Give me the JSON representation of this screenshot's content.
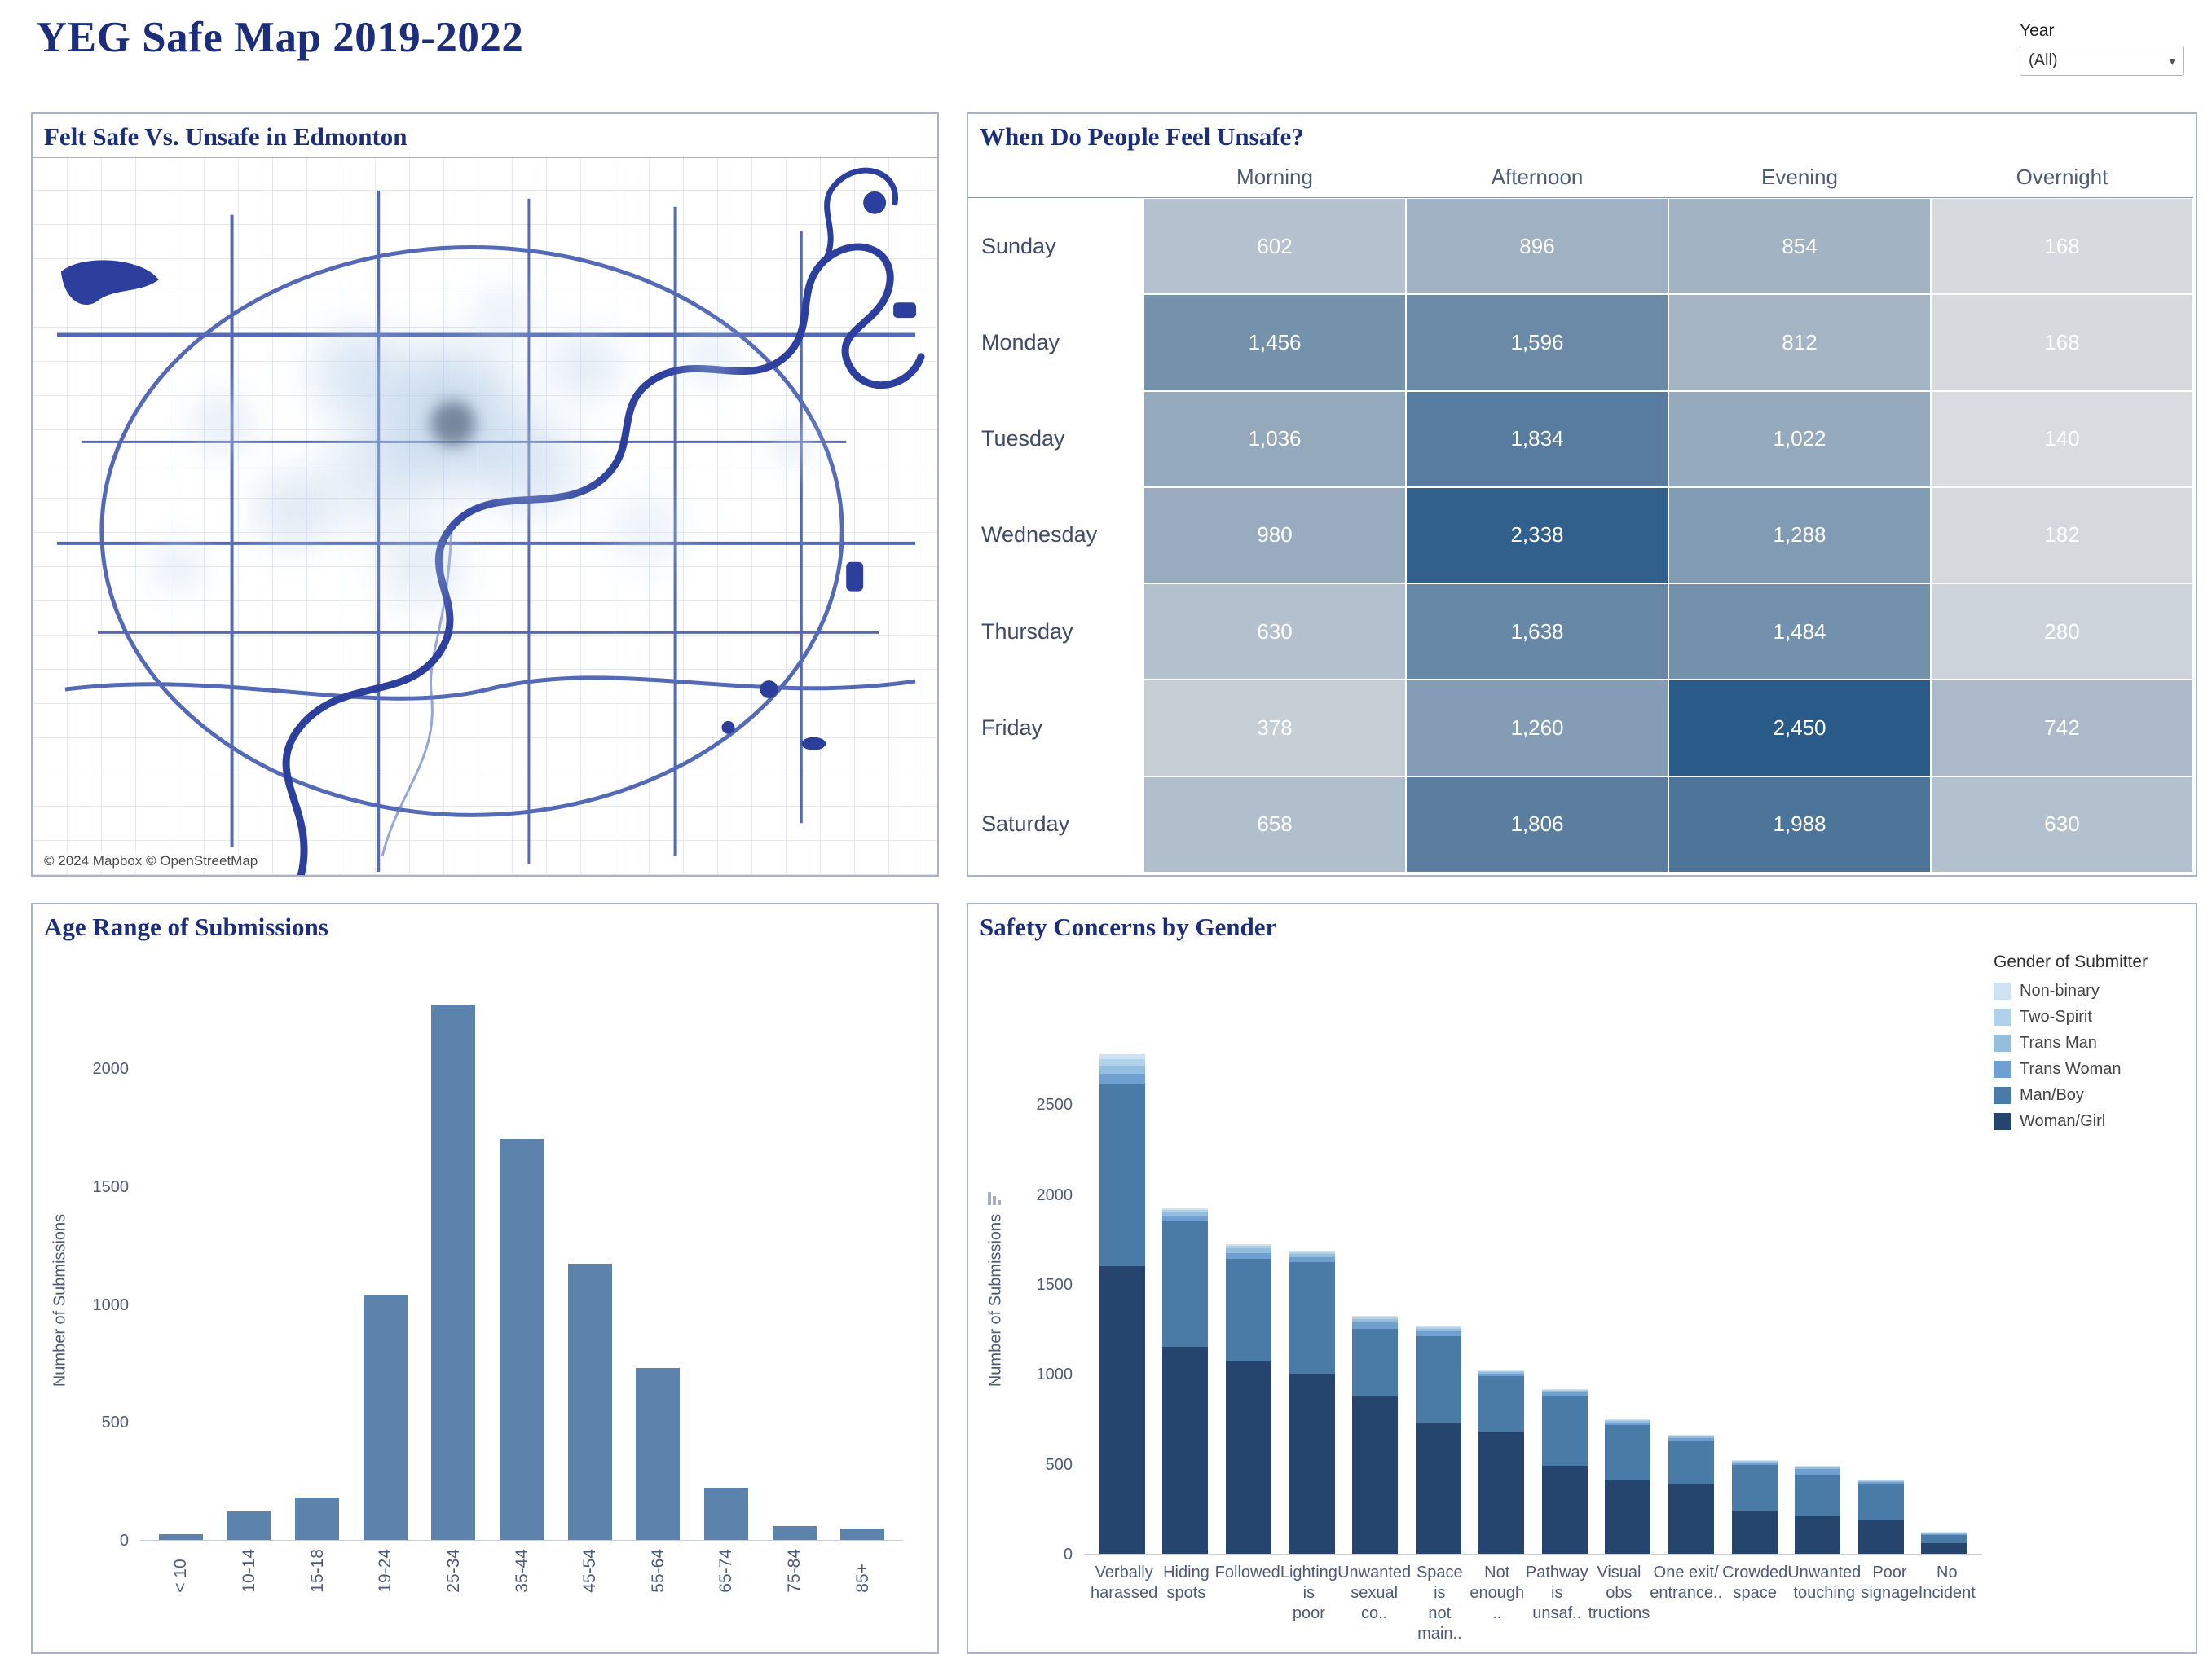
{
  "page": {
    "title": "YEG Safe Map 2019-2022",
    "year_filter": {
      "label": "Year",
      "value": "(All)"
    }
  },
  "panels": {
    "map": {
      "title": "Felt Safe Vs. Unsafe in Edmonton",
      "attribution": "© 2024 Mapbox  © OpenStreetMap"
    },
    "unsafe_times": {
      "title": "When Do People Feel Unsafe?"
    },
    "age": {
      "title": "Age Range of Submissions"
    },
    "gender": {
      "title": "Safety Concerns by Gender"
    }
  },
  "chart_data": [
    {
      "id": "unsafe_times",
      "type": "heatmap",
      "title": "When Do People Feel Unsafe?",
      "columns": [
        "Morning",
        "Afternoon",
        "Evening",
        "Overnight"
      ],
      "rows": [
        "Sunday",
        "Monday",
        "Tuesday",
        "Wednesday",
        "Thursday",
        "Friday",
        "Saturday"
      ],
      "values": [
        [
          602,
          896,
          854,
          168
        ],
        [
          1456,
          1596,
          812,
          168
        ],
        [
          1036,
          1834,
          1022,
          140
        ],
        [
          980,
          2338,
          1288,
          182
        ],
        [
          630,
          1638,
          1484,
          280
        ],
        [
          378,
          1260,
          2450,
          742
        ],
        [
          658,
          1806,
          1988,
          630
        ]
      ],
      "color_scale": {
        "min": 140,
        "max": 2450,
        "min_color": "#d8dbdf",
        "max_color": "#2a5a88"
      }
    },
    {
      "id": "age",
      "type": "bar",
      "title": "Age Range of Submissions",
      "categories": [
        "< 10",
        "10-14",
        "15-18",
        "19-24",
        "25-34",
        "35-44",
        "45-54",
        "55-64",
        "65-74",
        "75-84",
        "85+"
      ],
      "values": [
        25,
        120,
        180,
        1040,
        2270,
        1700,
        1170,
        730,
        220,
        60,
        50
      ],
      "ylabel": "Number of Submissions",
      "yticks": [
        0,
        500,
        1000,
        1500,
        2000
      ],
      "ylim": [
        0,
        2350
      ],
      "bar_color": "#5b83ac",
      "grid": false
    },
    {
      "id": "gender",
      "type": "bar",
      "stacked": true,
      "title": "Safety Concerns by Gender",
      "categories": [
        [
          "Verbally",
          "harassed"
        ],
        [
          "Hiding",
          "spots"
        ],
        [
          "Followed"
        ],
        [
          "Lighting is",
          "poor"
        ],
        [
          "Unwanted",
          "sexual co.."
        ],
        [
          "Space is",
          "not main.."
        ],
        [
          "Not",
          "enough .."
        ],
        [
          "Pathway",
          "is unsaf.."
        ],
        [
          "Visual obs",
          "tructions"
        ],
        [
          "One exit/",
          "entrance.."
        ],
        [
          "Crowded",
          "space"
        ],
        [
          "Unwanted",
          "touching"
        ],
        [
          "Poor",
          "signage"
        ],
        [
          "No",
          "Incident"
        ]
      ],
      "series": [
        {
          "name": "Woman/Girl",
          "color": "#26456e",
          "values": [
            1600,
            1150,
            1070,
            1000,
            880,
            730,
            680,
            490,
            410,
            390,
            240,
            210,
            190,
            60
          ]
        },
        {
          "name": "Man/Boy",
          "color": "#4a7aa6",
          "values": [
            1010,
            700,
            570,
            620,
            370,
            480,
            310,
            390,
            310,
            240,
            255,
            230,
            200,
            45
          ]
        },
        {
          "name": "Trans Woman",
          "color": "#709fd1",
          "values": [
            60,
            30,
            30,
            25,
            35,
            25,
            15,
            20,
            15,
            15,
            15,
            30,
            10,
            3
          ]
        },
        {
          "name": "Trans Man",
          "color": "#94bede",
          "values": [
            45,
            20,
            25,
            20,
            20,
            15,
            10,
            10,
            10,
            10,
            5,
            10,
            5,
            2
          ]
        },
        {
          "name": "Two-Spirit",
          "color": "#afd1ea",
          "values": [
            35,
            15,
            15,
            10,
            10,
            10,
            5,
            5,
            5,
            5,
            5,
            5,
            3,
            1
          ]
        },
        {
          "name": "Non-binary",
          "color": "#cfe2f3",
          "values": [
            30,
            10,
            10,
            10,
            10,
            10,
            10,
            5,
            5,
            5,
            5,
            5,
            2,
            1
          ]
        }
      ],
      "legend": {
        "title": "Gender of Submitter",
        "items": [
          "Non-binary",
          "Two-Spirit",
          "Trans Man",
          "Trans Woman",
          "Man/Boy",
          "Woman/Girl"
        ],
        "position": "top-right"
      },
      "ylabel": "Number of Submissions",
      "yticks": [
        0,
        500,
        1000,
        1500,
        2000,
        2500
      ],
      "ylim": [
        0,
        2900
      ],
      "grid": false
    }
  ]
}
